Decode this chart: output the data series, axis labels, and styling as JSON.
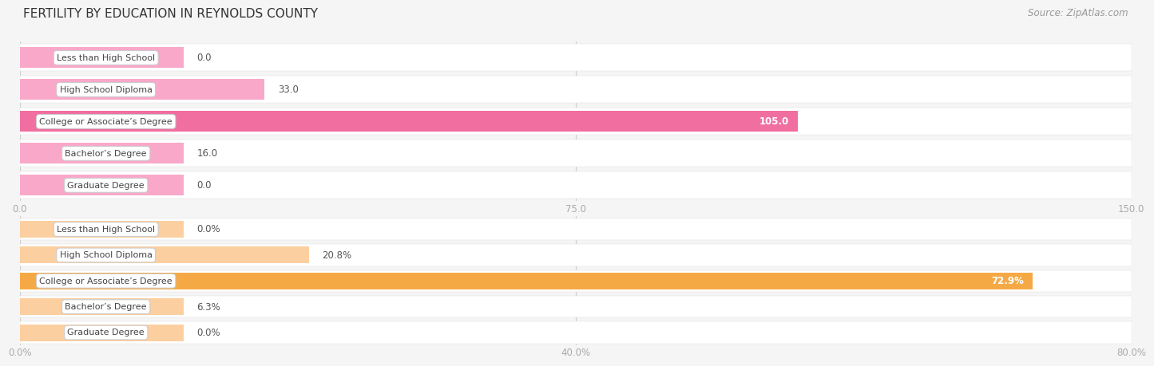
{
  "title": "FERTILITY BY EDUCATION IN REYNOLDS COUNTY",
  "source": "Source: ZipAtlas.com",
  "top_chart": {
    "categories": [
      "Less than High School",
      "High School Diploma",
      "College or Associate’s Degree",
      "Bachelor’s Degree",
      "Graduate Degree"
    ],
    "values": [
      0.0,
      33.0,
      105.0,
      16.0,
      0.0
    ],
    "xlim": [
      0,
      150.0
    ],
    "xticks": [
      0.0,
      75.0,
      150.0
    ],
    "xtick_labels": [
      "0.0",
      "75.0",
      "150.0"
    ],
    "bar_color_normal": "#F9A8C9",
    "bar_color_highlight": "#F06EA0",
    "highlight_index": 2,
    "value_labels": [
      "0.0",
      "33.0",
      "105.0",
      "16.0",
      "0.0"
    ],
    "value_in_bar": [
      false,
      false,
      true,
      false,
      false
    ]
  },
  "bottom_chart": {
    "categories": [
      "Less than High School",
      "High School Diploma",
      "College or Associate’s Degree",
      "Bachelor’s Degree",
      "Graduate Degree"
    ],
    "values": [
      0.0,
      20.8,
      72.9,
      6.3,
      0.0
    ],
    "xlim": [
      0,
      80.0
    ],
    "xticks": [
      0.0,
      40.0,
      80.0
    ],
    "xtick_labels": [
      "0.0%",
      "40.0%",
      "80.0%"
    ],
    "bar_color_normal": "#FCCFA0",
    "bar_color_highlight": "#F5A945",
    "highlight_index": 2,
    "value_labels": [
      "0.0%",
      "20.8%",
      "72.9%",
      "6.3%",
      "0.0%"
    ],
    "value_in_bar": [
      false,
      false,
      true,
      false,
      false
    ]
  },
  "bg_color": "#f5f5f5",
  "label_font_size": 8.0,
  "value_font_size": 8.5,
  "title_font_size": 11,
  "source_font_size": 8.5
}
